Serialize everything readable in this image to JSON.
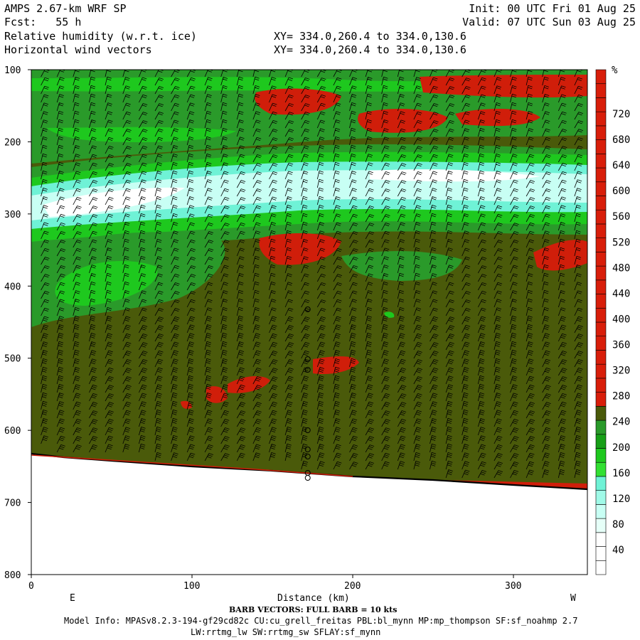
{
  "header": {
    "model": "AMPS 2.67-km WRF SP",
    "fcst": "Fcst:   55 h",
    "field1": "Relative humidity (w.r.t. ice)",
    "field2": "Horizontal wind vectors",
    "init": "Init: 00 UTC Fri 01 Aug 25",
    "valid": "Valid: 07 UTC Sun 03 Aug 25",
    "xy1": "XY= 334.0,260.4 to 334.0,130.6",
    "xy2": "XY= 334.0,260.4 to 334.0,130.6"
  },
  "axes": {
    "xlabel": "Distance (km)",
    "left_end": "E",
    "right_end": "W",
    "colorbar_unit": "%"
  },
  "footer": {
    "barb": "BARB VECTORS:  FULL BARB = 10 kts",
    "model_info": "Model Info: MPASv8.2.3-194-gf29cd82c CU:cu_grell_freitas PBL:bl_mynn MP:mp_thompson SF:sf_noahmp 2.7",
    "model_info2": "LW:rrtmg_lw SW:rrtmg_sw SFLAY:sf_mynn"
  },
  "colors": {
    "white": "#ffffff",
    "pale_cyan": "#c8fff4",
    "cyan": "#6ff2d6",
    "light_green": "#1ec81e",
    "green": "#2a9a2a",
    "dark_green": "#4a5a0a",
    "red": "#d01e0a",
    "terrain_line": "#000000"
  },
  "chart_data": {
    "type": "heatmap",
    "x_range": [
      0,
      346
    ],
    "y_range": [
      100,
      800
    ],
    "y_scale": "linear-inverted",
    "x_ticks": [
      0,
      100,
      200,
      300
    ],
    "y_ticks": [
      100,
      200,
      300,
      400,
      500,
      600,
      700,
      800
    ],
    "colorbar": {
      "levels": [
        40,
        80,
        120,
        160,
        200,
        240,
        280,
        320,
        360,
        400,
        440,
        480,
        520,
        560,
        600,
        640,
        680,
        720
      ],
      "tick_labels": [
        "40",
        "80",
        "120",
        "160",
        "200",
        "240",
        "280",
        "320",
        "360",
        "400",
        "440",
        "480",
        "520",
        "560",
        "600",
        "640",
        "680",
        "720"
      ],
      "swatches": [
        "#ffffff",
        "#ffffff",
        "#ffffff",
        "#e6fff8",
        "#c8fff4",
        "#a0fae8",
        "#6ff2d6",
        "#32e032",
        "#1ec81e",
        "#179f17",
        "#2a9a2a",
        "#4a5a0a",
        "#d81e0a",
        "#d81e0a",
        "#d81e0a",
        "#d81e0a",
        "#d81e0a",
        "#d81e0a",
        "#d81e0a",
        "#d81e0a",
        "#d81e0a",
        "#d81e0a",
        "#d81e0a",
        "#d81e0a",
        "#d81e0a",
        "#d81e0a",
        "#d81e0a",
        "#d81e0a",
        "#d81e0a",
        "#d81e0a",
        "#d81e0a",
        "#d81e0a",
        "#d81e0a",
        "#d81e0a",
        "#d81e0a",
        "#d81e0a"
      ]
    },
    "terrain_surface": [
      [
        0,
        638
      ],
      [
        20,
        643
      ],
      [
        50,
        648
      ],
      [
        100,
        656
      ],
      [
        150,
        662
      ],
      [
        200,
        670
      ],
      [
        250,
        675
      ],
      [
        300,
        682
      ],
      [
        346,
        688
      ]
    ],
    "barb_columns_km": [
      6,
      16,
      26,
      36,
      46,
      57,
      67,
      77,
      87,
      97,
      108,
      118,
      128,
      138,
      148,
      158,
      168,
      178,
      188,
      198,
      208,
      218,
      228,
      238,
      248,
      258,
      268,
      278,
      288,
      298,
      308,
      318,
      328,
      338
    ]
  }
}
